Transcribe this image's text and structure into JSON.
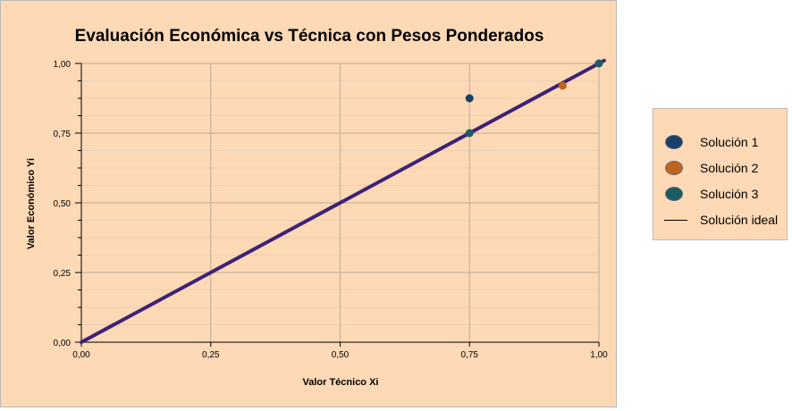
{
  "chart_data": {
    "type": "scatter",
    "title": "Evaluación Económica vs Técnica con Pesos Ponderados",
    "xlabel": "Valor Técnico Xi",
    "ylabel": "Valor Económico Yi",
    "xlim": [
      0,
      1
    ],
    "ylim": [
      0,
      1
    ],
    "xticks": [
      "0,00",
      "0,25",
      "0,50",
      "0,75",
      "1,00"
    ],
    "yticks": [
      "0,00",
      "0,25",
      "0,50",
      "0,75",
      "1,00"
    ],
    "grid": true,
    "legend_position": "right",
    "series": [
      {
        "name": "Solución 1",
        "color": "#1b3f6b",
        "points": [
          [
            0.75,
            0.875
          ]
        ]
      },
      {
        "name": "Solución 2",
        "color": "#c0651c",
        "points": [
          [
            0.93,
            0.92
          ]
        ]
      },
      {
        "name": "Solución 3",
        "color": "#1b5d64",
        "points": [
          [
            0.75,
            0.75
          ],
          [
            1.0,
            1.0
          ]
        ]
      }
    ],
    "ideal_line": {
      "name": "Solución ideal",
      "color": "#3d2277",
      "from": [
        0,
        0
      ],
      "to": [
        1,
        1
      ]
    }
  }
}
